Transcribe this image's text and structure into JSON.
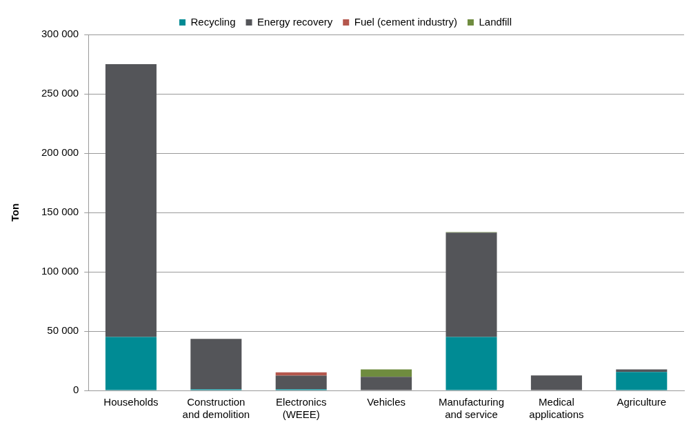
{
  "chart_data": {
    "type": "bar",
    "stacked": true,
    "ylabel": "Ton",
    "categories": [
      "Households",
      "Construction and demolition",
      "Electronics (WEEE)",
      "Vehicles",
      "Manufacturing and service",
      "Medical applications",
      "Agriculture"
    ],
    "series": [
      {
        "name": "Recycling",
        "color": "#008b94",
        "values": [
          45000,
          1000,
          1000,
          0,
          45000,
          0,
          15500
        ]
      },
      {
        "name": "Energy recovery",
        "color": "#545559",
        "values": [
          230000,
          42500,
          11500,
          11500,
          88000,
          12600,
          2300
        ]
      },
      {
        "name": "Fuel (cement industry)",
        "color": "#b5574d",
        "values": [
          0,
          0,
          2700,
          0,
          0,
          0,
          0
        ]
      },
      {
        "name": "Landfill",
        "color": "#6f8c3f",
        "values": [
          0,
          0,
          0,
          6300,
          500,
          0,
          0
        ]
      }
    ],
    "ylim": [
      0,
      300000
    ],
    "yticks": [
      {
        "value": 0,
        "label": "0"
      },
      {
        "value": 50000,
        "label": "50 000"
      },
      {
        "value": 100000,
        "label": "100 000"
      },
      {
        "value": 150000,
        "label": "150 000"
      },
      {
        "value": 200000,
        "label": "200 000"
      },
      {
        "value": 250000,
        "label": "250 000"
      },
      {
        "value": 300000,
        "label": "300 000"
      }
    ],
    "grid": "y",
    "legend": "top"
  }
}
